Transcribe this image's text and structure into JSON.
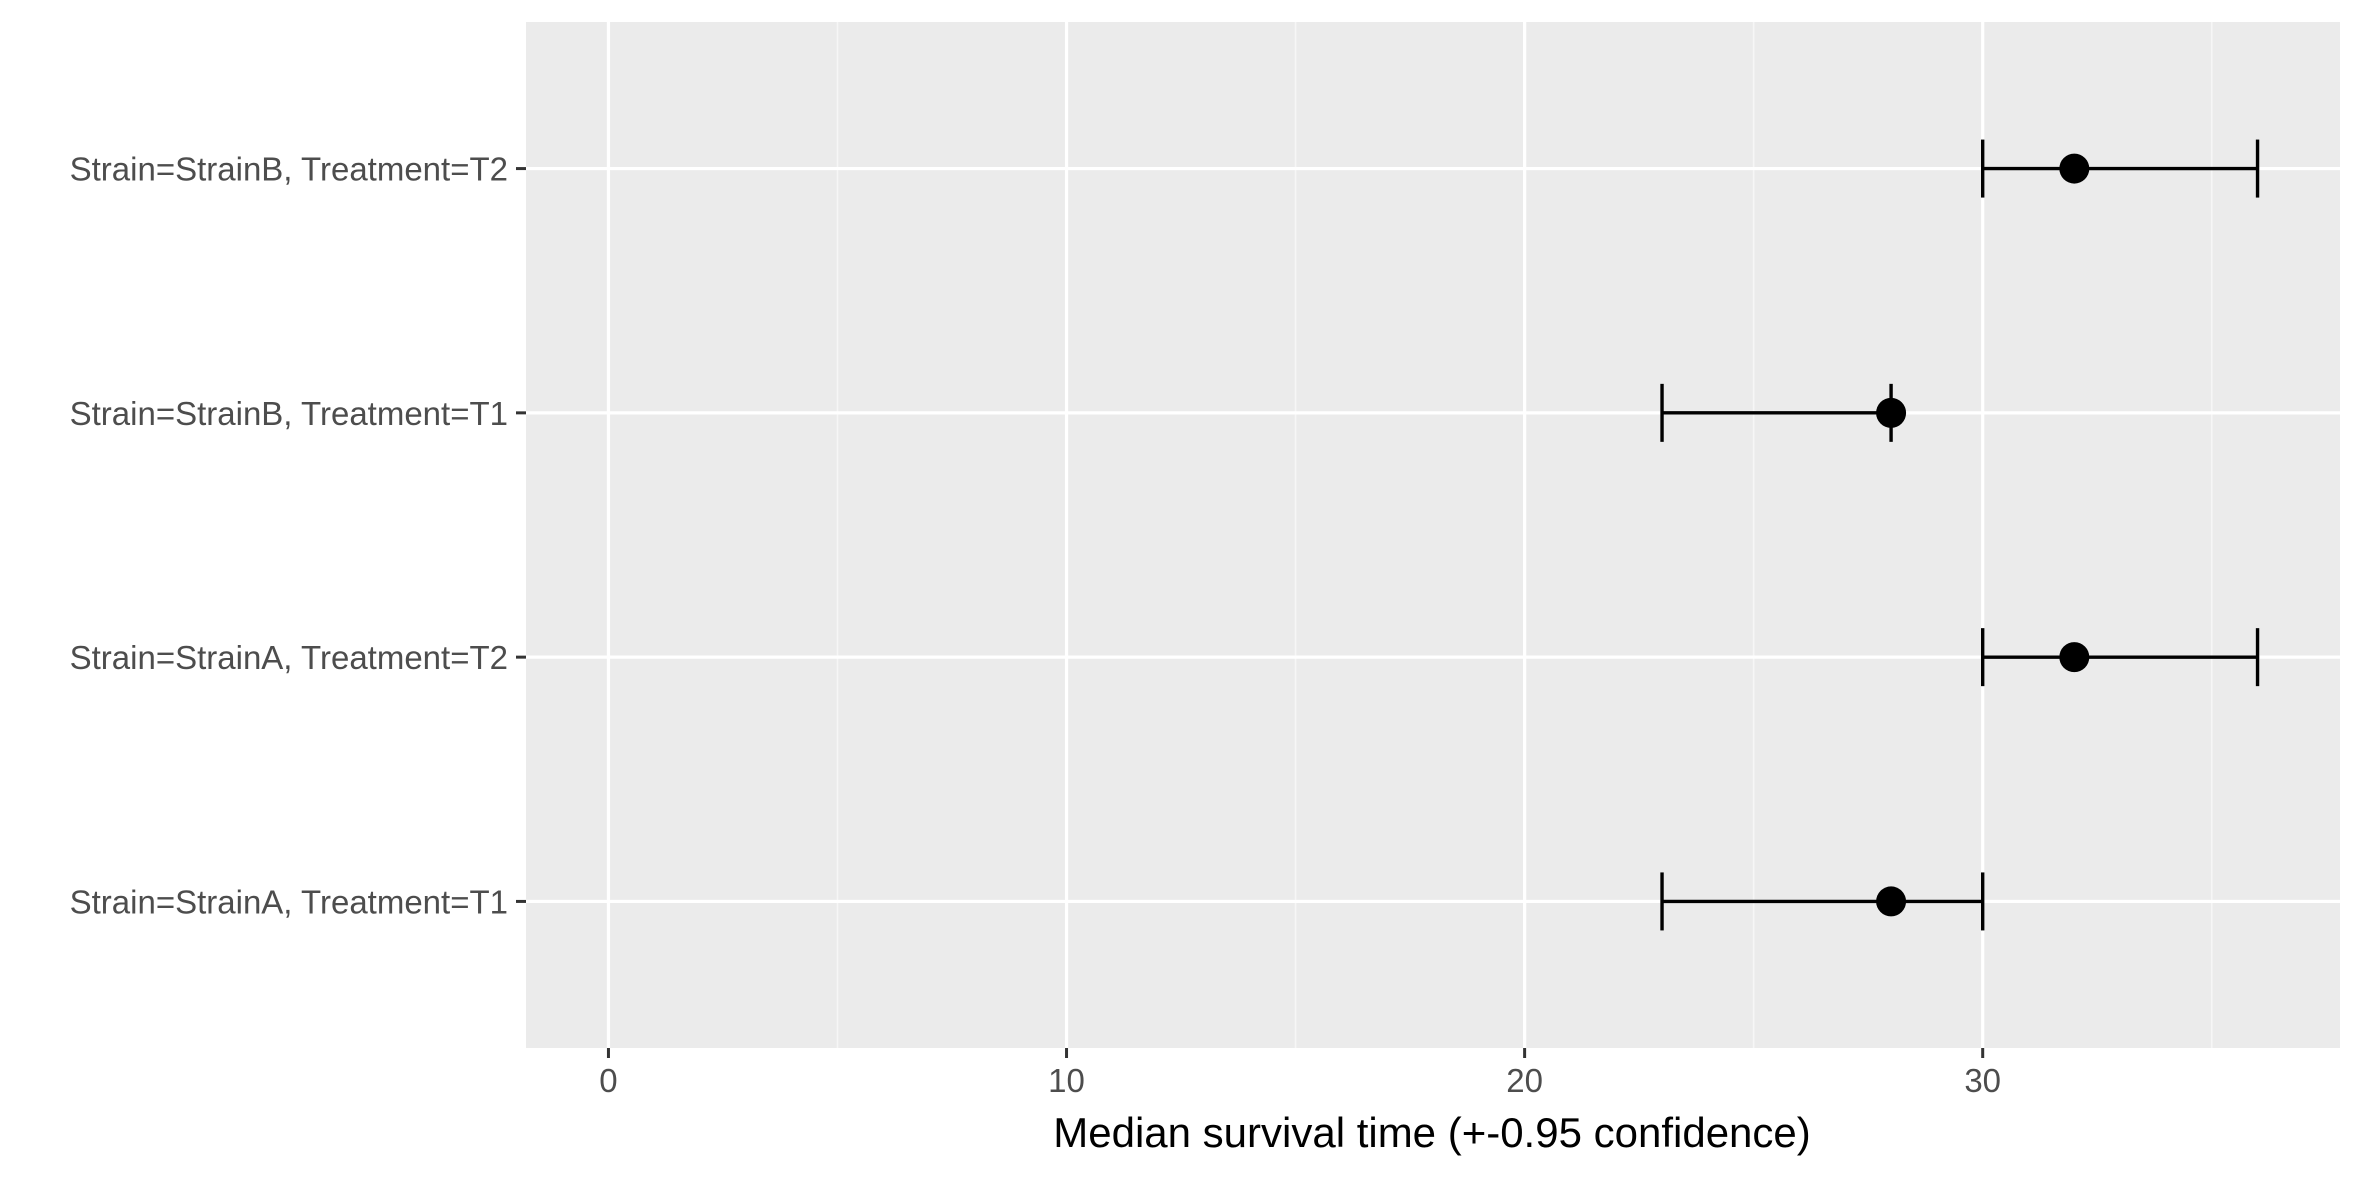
{
  "chart_data": {
    "type": "scatter",
    "subtype": "point-with-horizontal-errorbars",
    "title": "",
    "xlabel": "Median survival time (+-0.95 confidence)",
    "ylabel": "",
    "xlim": [
      -1.8,
      37.8
    ],
    "x_ticks": [
      0,
      10,
      20,
      30
    ],
    "x_tick_labels": [
      "0",
      "10",
      "20",
      "30"
    ],
    "x_minor_ticks": [
      5,
      15,
      25,
      35
    ],
    "categories": [
      "Strain=StrainA, Treatment=T1",
      "Strain=StrainA, Treatment=T2",
      "Strain=StrainB, Treatment=T1",
      "Strain=StrainB, Treatment=T2"
    ],
    "series": [
      {
        "median": [
          28,
          32,
          28,
          32
        ],
        "lower": [
          23,
          30,
          23,
          30
        ],
        "upper": [
          30,
          36,
          28,
          36
        ]
      }
    ],
    "grid": true,
    "legend": "none",
    "colors": {
      "panel_background": "#ebebeb",
      "grid_major": "#ffffff",
      "grid_minor": "#f6f6f6",
      "point": "#000000",
      "errorbar": "#000000",
      "tick_text": "#4d4d4d",
      "axis_title": "#000000",
      "tick_mark": "#333333"
    }
  }
}
